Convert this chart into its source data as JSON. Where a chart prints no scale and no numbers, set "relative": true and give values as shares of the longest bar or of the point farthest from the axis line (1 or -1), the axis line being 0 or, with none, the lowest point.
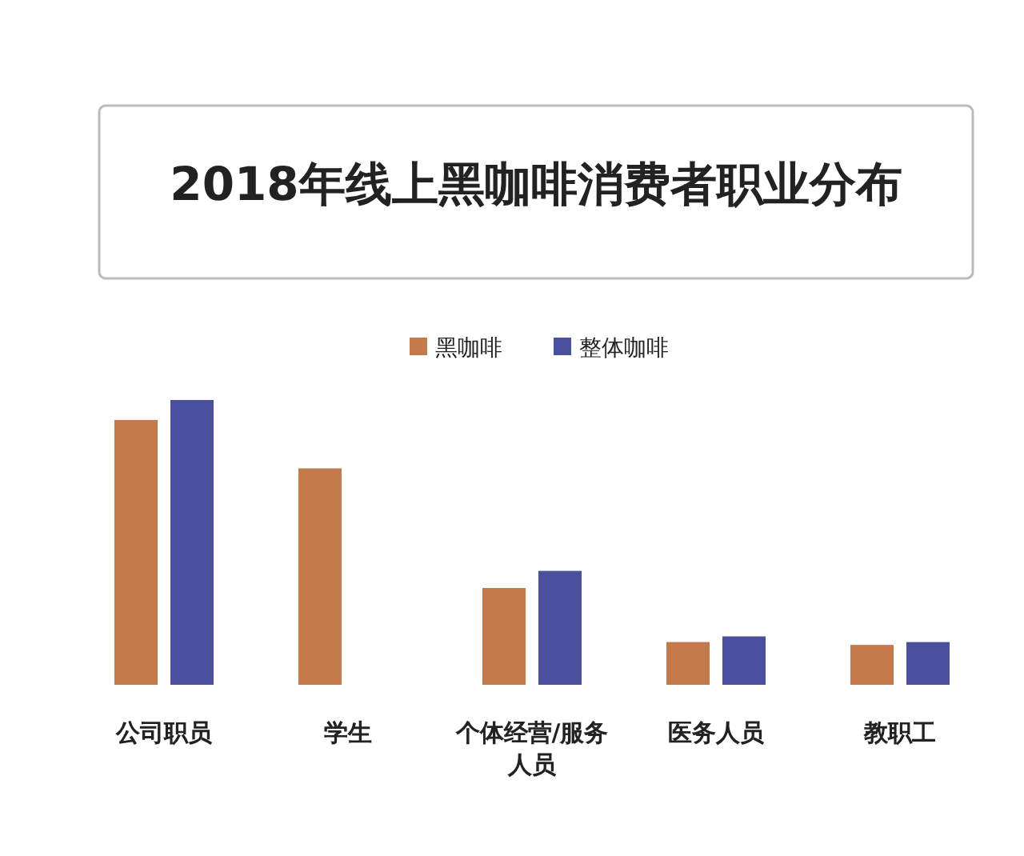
{
  "chart_data": {
    "type": "bar",
    "title": "2018年线上黑咖啡消费者职业分布",
    "relative": true,
    "legend": "top",
    "categories": [
      "公司职员",
      "学生",
      "个体经营/服务人员",
      "医务人员",
      "教职工"
    ],
    "series": [
      {
        "name": "黑咖啡",
        "color": "#c47a4a",
        "values": [
          0.93,
          0.76,
          0.34,
          0.15,
          0.14
        ]
      },
      {
        "name": "整体咖啡",
        "color": "#4a4f9e",
        "values": [
          1,
          null,
          0.4,
          0.17,
          0.15
        ]
      }
    ]
  }
}
